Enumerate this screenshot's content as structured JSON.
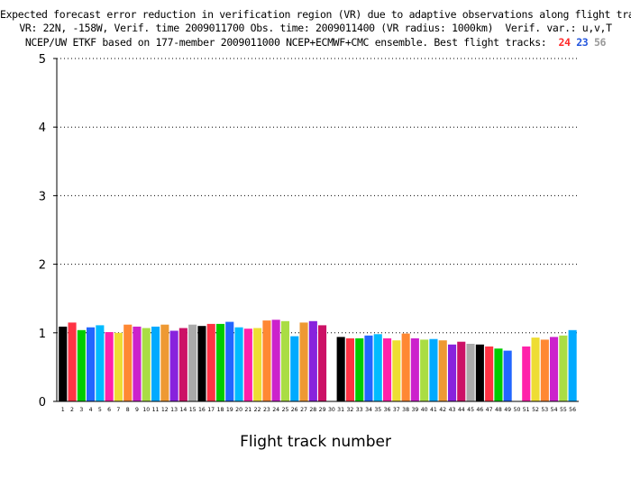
{
  "chart_data": {
    "type": "bar",
    "title_lines": [
      "Expected forecast error reduction in verification region (VR) due to adaptive observations along flight tracks.",
      "VR: 22N, -158W, Verif. time 2009011700 Obs. time: 2009011400 (VR radius: 1000km)  Verif. var.: u,v,T",
      "NCEP/UW ETKF based on 177-member 2009011000 NCEP+ECMWF+CMC ensemble. Best flight tracks:"
    ],
    "best_tracks": [
      {
        "label": "24",
        "color": "#ff2a2a"
      },
      {
        "label": "23",
        "color": "#2255dd"
      },
      {
        "label": "56",
        "color": "#999999"
      }
    ],
    "xlabel": "Flight track number",
    "ylabel": "",
    "ylim": [
      0,
      5
    ],
    "yticks": [
      "0",
      "1",
      "2",
      "3",
      "4",
      "5"
    ],
    "grid": "horizontal dotted",
    "categories": [
      "1",
      "2",
      "3",
      "4",
      "5",
      "6",
      "7",
      "8",
      "9",
      "10",
      "11",
      "12",
      "13",
      "14",
      "15",
      "16",
      "17",
      "18",
      "19",
      "20",
      "21",
      "22",
      "23",
      "24",
      "25",
      "26",
      "27",
      "28",
      "29",
      "30",
      "31",
      "32",
      "33",
      "34",
      "35",
      "36",
      "37",
      "38",
      "39",
      "40",
      "41",
      "42",
      "43",
      "44",
      "45",
      "46",
      "47",
      "48",
      "49",
      "50",
      "51",
      "52",
      "53",
      "54",
      "55",
      "56"
    ],
    "values": [
      1.09,
      1.15,
      1.04,
      1.08,
      1.11,
      1.01,
      1.0,
      1.12,
      1.09,
      1.07,
      1.09,
      1.12,
      1.03,
      1.07,
      1.12,
      1.1,
      1.13,
      1.13,
      1.16,
      1.08,
      1.06,
      1.07,
      1.18,
      1.19,
      1.17,
      0.95,
      1.15,
      1.17,
      1.11,
      0.0,
      0.94,
      0.92,
      0.92,
      0.96,
      0.98,
      0.92,
      0.89,
      0.99,
      0.92,
      0.9,
      0.91,
      0.89,
      0.83,
      0.87,
      0.84,
      0.83,
      0.8,
      0.77,
      0.74,
      0.0,
      0.8,
      0.93,
      0.9,
      0.94,
      0.96,
      1.04
    ],
    "colors": [
      "#000000",
      "#ff3344",
      "#00cc00",
      "#2266ff",
      "#00bbff",
      "#ff22aa",
      "#eedd33",
      "#ff8833",
      "#cc22cc",
      "#aadd44",
      "#00aaff",
      "#ee9933",
      "#8822dd",
      "#cc1166",
      "#aaaaaa",
      "#000000",
      "#ff3344",
      "#00cc00",
      "#2266ff",
      "#00bbff",
      "#ff22aa",
      "#eedd33",
      "#ff8833",
      "#cc22cc",
      "#aadd44",
      "#00aaff",
      "#ee9933",
      "#8822dd",
      "#cc1166",
      "#aaaaaa",
      "#000000",
      "#ff3344",
      "#00cc00",
      "#2266ff",
      "#00bbff",
      "#ff22aa",
      "#eedd33",
      "#ff8833",
      "#cc22cc",
      "#aadd44",
      "#00aaff",
      "#ee9933",
      "#8822dd",
      "#cc1166",
      "#aaaaaa",
      "#000000",
      "#ff3344",
      "#00cc00",
      "#2266ff",
      "#00bbff",
      "#ff22aa",
      "#eedd33",
      "#ff8833",
      "#cc22cc",
      "#aadd44",
      "#00aaff"
    ]
  }
}
